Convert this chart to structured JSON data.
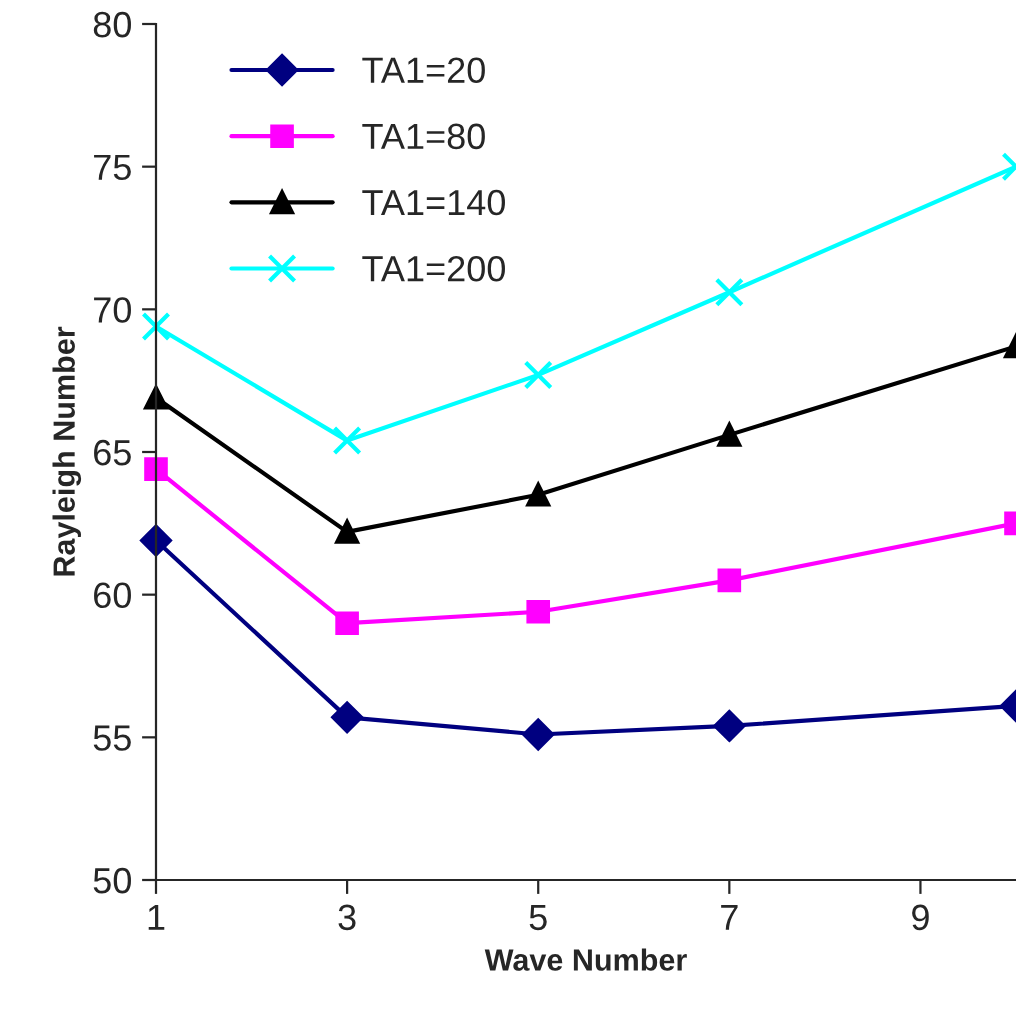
{
  "chart_data": {
    "type": "line",
    "xlabel": "Wave Number",
    "ylabel": "Rayleigh Number",
    "x": [
      1,
      3,
      5,
      7,
      10
    ],
    "series": [
      {
        "name": "TA1=20",
        "color": "#000080",
        "marker": "diamond",
        "values": [
          61.9,
          55.7,
          55.1,
          55.4,
          56.1
        ]
      },
      {
        "name": "TA1=80",
        "color": "#ff00ff",
        "marker": "square",
        "values": [
          64.4,
          59.0,
          59.4,
          60.5,
          62.5
        ]
      },
      {
        "name": "TA1=140",
        "color": "#000000",
        "marker": "triangle",
        "values": [
          66.9,
          62.2,
          63.5,
          65.6,
          68.7
        ]
      },
      {
        "name": "TA1=200",
        "color": "#00ffff",
        "marker": "cross",
        "values": [
          69.4,
          65.4,
          67.7,
          70.6,
          75.0
        ]
      }
    ],
    "xlim": [
      1,
      10
    ],
    "xticks": [
      1,
      3,
      5,
      7,
      9
    ],
    "ylim": [
      50,
      80
    ],
    "yticks": [
      50,
      55,
      60,
      65,
      70,
      75,
      80
    ],
    "grid": false,
    "legend": "top left",
    "line_style": "solid"
  }
}
